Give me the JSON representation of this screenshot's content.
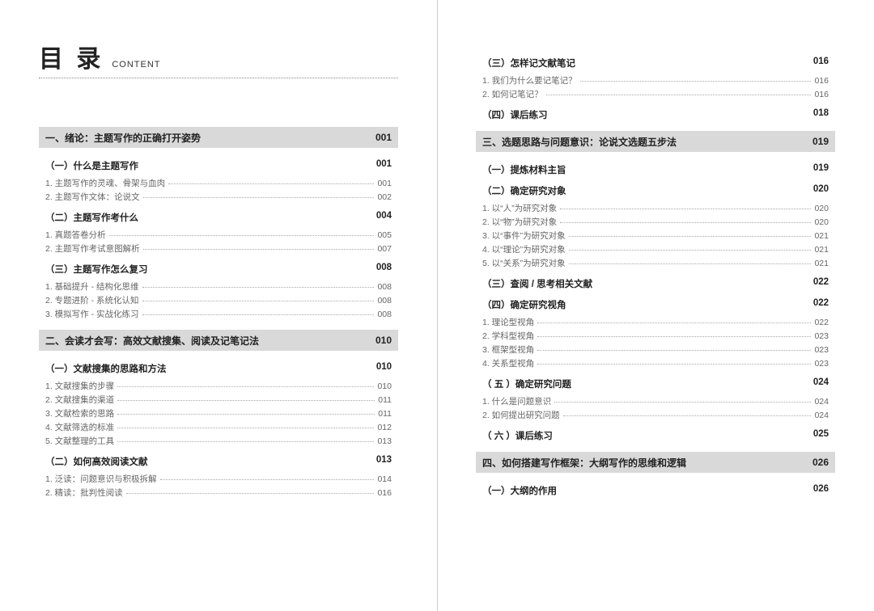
{
  "header": {
    "title_cn": "目 录",
    "title_en": "CONTENT"
  },
  "colors": {
    "chapter_bg": "#d9d9d9",
    "text_main": "#222222",
    "text_sub": "#666666",
    "dot_color": "#aaaaaa"
  },
  "left": [
    {
      "type": "chapter",
      "title": "一、绪论：主题写作的正确打开姿势",
      "page": "001"
    },
    {
      "type": "section",
      "title": "（一）什么是主题写作",
      "page": "001"
    },
    {
      "type": "item",
      "title": "1. 主题写作的灵魂、骨架与血肉",
      "page": "001"
    },
    {
      "type": "item",
      "title": "2. 主题写作文体：论说文",
      "page": "002"
    },
    {
      "type": "section",
      "title": "（二）主题写作考什么",
      "page": "004"
    },
    {
      "type": "item",
      "title": "1. 真题答卷分析",
      "page": "005"
    },
    {
      "type": "item",
      "title": "2. 主题写作考试意图解析",
      "page": "007"
    },
    {
      "type": "section",
      "title": "（三）主题写作怎么复习",
      "page": "008"
    },
    {
      "type": "item",
      "title": "1. 基础提升 - 结构化思维",
      "page": "008"
    },
    {
      "type": "item",
      "title": "2. 专题进阶 - 系统化认知",
      "page": "008"
    },
    {
      "type": "item",
      "title": "3. 模拟写作 - 实战化练习",
      "page": "008"
    },
    {
      "type": "chapter",
      "title": "二、会读才会写：高效文献搜集、阅读及记笔记法",
      "page": "010"
    },
    {
      "type": "section",
      "title": "（一）文献搜集的思路和方法",
      "page": "010"
    },
    {
      "type": "item",
      "title": "1. 文献搜集的步骤",
      "page": "010"
    },
    {
      "type": "item",
      "title": "2. 文献搜集的渠道",
      "page": "011"
    },
    {
      "type": "item",
      "title": "3. 文献检索的思路",
      "page": "011"
    },
    {
      "type": "item",
      "title": "4. 文献筛选的标准",
      "page": "012"
    },
    {
      "type": "item",
      "title": "5. 文献整理的工具",
      "page": "013"
    },
    {
      "type": "section",
      "title": "（二）如何高效阅读文献",
      "page": "013"
    },
    {
      "type": "item",
      "title": "1. 泛读：问题意识与积极拆解",
      "page": "014"
    },
    {
      "type": "item",
      "title": "2. 精读：批判性阅读",
      "page": "016"
    }
  ],
  "right": [
    {
      "type": "section",
      "title": "（三）怎样记文献笔记",
      "page": "016"
    },
    {
      "type": "item",
      "title": "1. 我们为什么要记笔记？",
      "page": "016"
    },
    {
      "type": "item",
      "title": "2. 如何记笔记？",
      "page": "016"
    },
    {
      "type": "section",
      "title": "（四）课后练习",
      "page": "018"
    },
    {
      "type": "chapter",
      "title": "三、选题思路与问题意识：论说文选题五步法",
      "page": "019"
    },
    {
      "type": "section",
      "title": "（一）提炼材料主旨",
      "page": "019"
    },
    {
      "type": "section",
      "title": "（二）确定研究对象",
      "page": "020"
    },
    {
      "type": "item",
      "title": "1. 以“人”为研究对象",
      "page": "020"
    },
    {
      "type": "item",
      "title": "2. 以“物”为研究对象",
      "page": "020"
    },
    {
      "type": "item",
      "title": "3. 以“事件”为研究对象",
      "page": "021"
    },
    {
      "type": "item",
      "title": "4. 以“理论”为研究对象",
      "page": "021"
    },
    {
      "type": "item",
      "title": "5. 以“关系”为研究对象",
      "page": "021"
    },
    {
      "type": "section",
      "title": "（三）查阅 / 思考相关文献",
      "page": "022"
    },
    {
      "type": "section",
      "title": "（四）确定研究视角",
      "page": "022"
    },
    {
      "type": "item",
      "title": "1. 理论型视角",
      "page": "022"
    },
    {
      "type": "item",
      "title": "2. 学科型视角",
      "page": "023"
    },
    {
      "type": "item",
      "title": "3. 框架型视角",
      "page": "023"
    },
    {
      "type": "item",
      "title": "4. 关系型视角",
      "page": "023"
    },
    {
      "type": "section",
      "title": "（ 五 ）确定研究问题",
      "page": "024"
    },
    {
      "type": "item",
      "title": "1. 什么是问题意识",
      "page": "024"
    },
    {
      "type": "item",
      "title": "2. 如何提出研究问题",
      "page": "024"
    },
    {
      "type": "section",
      "title": "（ 六 ）课后练习",
      "page": "025"
    },
    {
      "type": "chapter",
      "title": "四、如何搭建写作框架：大纲写作的思维和逻辑",
      "page": "026"
    },
    {
      "type": "section",
      "title": "（一）大纲的作用",
      "page": "026"
    }
  ]
}
